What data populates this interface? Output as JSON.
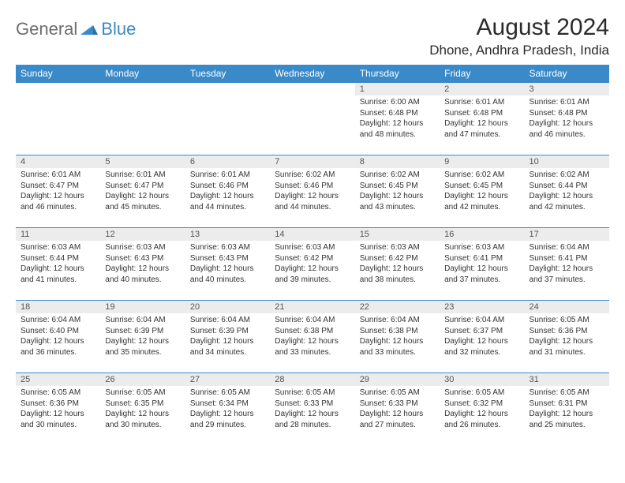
{
  "brand": {
    "word1": "General",
    "word2": "Blue"
  },
  "colors": {
    "accent": "#3a8ac9",
    "header_text": "#ffffff",
    "daynum_bg": "#ececec",
    "text": "#333333",
    "background": "#ffffff"
  },
  "title": "August 2024",
  "location": "Dhone, Andhra Pradesh, India",
  "day_names": [
    "Sunday",
    "Monday",
    "Tuesday",
    "Wednesday",
    "Thursday",
    "Friday",
    "Saturday"
  ],
  "calendar": {
    "first_weekday_index": 4,
    "days": [
      {
        "n": 1,
        "sunrise": "6:00 AM",
        "sunset": "6:48 PM",
        "daylight": "12 hours and 48 minutes."
      },
      {
        "n": 2,
        "sunrise": "6:01 AM",
        "sunset": "6:48 PM",
        "daylight": "12 hours and 47 minutes."
      },
      {
        "n": 3,
        "sunrise": "6:01 AM",
        "sunset": "6:48 PM",
        "daylight": "12 hours and 46 minutes."
      },
      {
        "n": 4,
        "sunrise": "6:01 AM",
        "sunset": "6:47 PM",
        "daylight": "12 hours and 46 minutes."
      },
      {
        "n": 5,
        "sunrise": "6:01 AM",
        "sunset": "6:47 PM",
        "daylight": "12 hours and 45 minutes."
      },
      {
        "n": 6,
        "sunrise": "6:01 AM",
        "sunset": "6:46 PM",
        "daylight": "12 hours and 44 minutes."
      },
      {
        "n": 7,
        "sunrise": "6:02 AM",
        "sunset": "6:46 PM",
        "daylight": "12 hours and 44 minutes."
      },
      {
        "n": 8,
        "sunrise": "6:02 AM",
        "sunset": "6:45 PM",
        "daylight": "12 hours and 43 minutes."
      },
      {
        "n": 9,
        "sunrise": "6:02 AM",
        "sunset": "6:45 PM",
        "daylight": "12 hours and 42 minutes."
      },
      {
        "n": 10,
        "sunrise": "6:02 AM",
        "sunset": "6:44 PM",
        "daylight": "12 hours and 42 minutes."
      },
      {
        "n": 11,
        "sunrise": "6:03 AM",
        "sunset": "6:44 PM",
        "daylight": "12 hours and 41 minutes."
      },
      {
        "n": 12,
        "sunrise": "6:03 AM",
        "sunset": "6:43 PM",
        "daylight": "12 hours and 40 minutes."
      },
      {
        "n": 13,
        "sunrise": "6:03 AM",
        "sunset": "6:43 PM",
        "daylight": "12 hours and 40 minutes."
      },
      {
        "n": 14,
        "sunrise": "6:03 AM",
        "sunset": "6:42 PM",
        "daylight": "12 hours and 39 minutes."
      },
      {
        "n": 15,
        "sunrise": "6:03 AM",
        "sunset": "6:42 PM",
        "daylight": "12 hours and 38 minutes."
      },
      {
        "n": 16,
        "sunrise": "6:03 AM",
        "sunset": "6:41 PM",
        "daylight": "12 hours and 37 minutes."
      },
      {
        "n": 17,
        "sunrise": "6:04 AM",
        "sunset": "6:41 PM",
        "daylight": "12 hours and 37 minutes."
      },
      {
        "n": 18,
        "sunrise": "6:04 AM",
        "sunset": "6:40 PM",
        "daylight": "12 hours and 36 minutes."
      },
      {
        "n": 19,
        "sunrise": "6:04 AM",
        "sunset": "6:39 PM",
        "daylight": "12 hours and 35 minutes."
      },
      {
        "n": 20,
        "sunrise": "6:04 AM",
        "sunset": "6:39 PM",
        "daylight": "12 hours and 34 minutes."
      },
      {
        "n": 21,
        "sunrise": "6:04 AM",
        "sunset": "6:38 PM",
        "daylight": "12 hours and 33 minutes."
      },
      {
        "n": 22,
        "sunrise": "6:04 AM",
        "sunset": "6:38 PM",
        "daylight": "12 hours and 33 minutes."
      },
      {
        "n": 23,
        "sunrise": "6:04 AM",
        "sunset": "6:37 PM",
        "daylight": "12 hours and 32 minutes."
      },
      {
        "n": 24,
        "sunrise": "6:05 AM",
        "sunset": "6:36 PM",
        "daylight": "12 hours and 31 minutes."
      },
      {
        "n": 25,
        "sunrise": "6:05 AM",
        "sunset": "6:36 PM",
        "daylight": "12 hours and 30 minutes."
      },
      {
        "n": 26,
        "sunrise": "6:05 AM",
        "sunset": "6:35 PM",
        "daylight": "12 hours and 30 minutes."
      },
      {
        "n": 27,
        "sunrise": "6:05 AM",
        "sunset": "6:34 PM",
        "daylight": "12 hours and 29 minutes."
      },
      {
        "n": 28,
        "sunrise": "6:05 AM",
        "sunset": "6:33 PM",
        "daylight": "12 hours and 28 minutes."
      },
      {
        "n": 29,
        "sunrise": "6:05 AM",
        "sunset": "6:33 PM",
        "daylight": "12 hours and 27 minutes."
      },
      {
        "n": 30,
        "sunrise": "6:05 AM",
        "sunset": "6:32 PM",
        "daylight": "12 hours and 26 minutes."
      },
      {
        "n": 31,
        "sunrise": "6:05 AM",
        "sunset": "6:31 PM",
        "daylight": "12 hours and 25 minutes."
      }
    ]
  },
  "labels": {
    "sunrise_prefix": "Sunrise: ",
    "sunset_prefix": "Sunset: ",
    "daylight_prefix": "Daylight: "
  },
  "typography": {
    "title_fontsize": 30,
    "location_fontsize": 17,
    "dow_fontsize": 12,
    "daynum_fontsize": 11,
    "body_fontsize": 10
  }
}
